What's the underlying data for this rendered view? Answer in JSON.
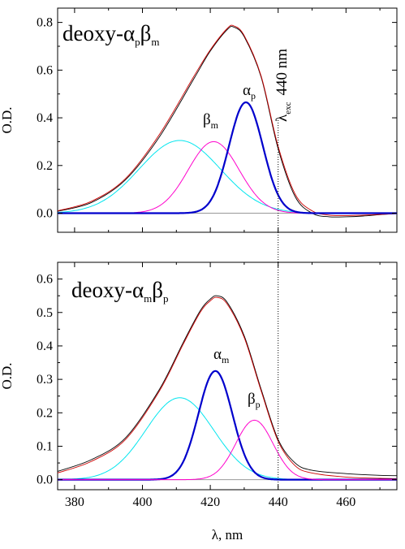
{
  "chart_data": [
    {
      "type": "line",
      "title": {
        "main": "deoxy-",
        "sym1": "α",
        "sub1": "p",
        "sym2": "β",
        "sub2": "m"
      },
      "ylabel": "O.D.",
      "xlabel": "",
      "xlim": [
        375,
        475
      ],
      "ylim": [
        -0.08,
        0.86
      ],
      "x_ticks": [],
      "y_ticks": [
        "0.0",
        "0.2",
        "0.4",
        "0.6",
        "0.8"
      ],
      "grid": false,
      "baseline_y": 0,
      "series": [
        {
          "name": "total-data",
          "color": "#000000",
          "width": 0.9,
          "points": [
            [
              375,
              0.008
            ],
            [
              385,
              0.045
            ],
            [
              395,
              0.14
            ],
            [
              405,
              0.32
            ],
            [
              415,
              0.56
            ],
            [
              420,
              0.68
            ],
            [
              425,
              0.77
            ],
            [
              427,
              0.78
            ],
            [
              430,
              0.74
            ],
            [
              435,
              0.57
            ],
            [
              440,
              0.27
            ],
            [
              445,
              0.07
            ],
            [
              450,
              0.0
            ],
            [
              455,
              -0.015
            ],
            [
              460,
              -0.015
            ],
            [
              465,
              -0.012
            ],
            [
              470,
              -0.006
            ],
            [
              475,
              -0.002
            ]
          ]
        },
        {
          "name": "total-fit",
          "color": "#cc0000",
          "width": 0.9,
          "points": [
            [
              375,
              0.01
            ],
            [
              385,
              0.05
            ],
            [
              395,
              0.145
            ],
            [
              405,
              0.33
            ],
            [
              415,
              0.57
            ],
            [
              420,
              0.685
            ],
            [
              425,
              0.775
            ],
            [
              427,
              0.785
            ],
            [
              430,
              0.745
            ],
            [
              435,
              0.575
            ],
            [
              440,
              0.28
            ],
            [
              445,
              0.08
            ],
            [
              450,
              0.01
            ],
            [
              455,
              -0.008
            ],
            [
              460,
              -0.01
            ],
            [
              465,
              -0.008
            ],
            [
              470,
              -0.005
            ],
            [
              475,
              -0.002
            ]
          ]
        },
        {
          "name": "broad",
          "color": "#00e5ee",
          "width": 1.0,
          "gaussian": {
            "amp": 0.305,
            "center": 411,
            "sigma": 12
          }
        },
        {
          "name": "beta_m",
          "color": "#ff00cc",
          "width": 1.0,
          "gaussian": {
            "amp": 0.3,
            "center": 421,
            "sigma": 7.5
          }
        },
        {
          "name": "alpha_p",
          "color": "#0000cc",
          "width": 2.2,
          "gaussian": {
            "amp": 0.465,
            "center": 430.5,
            "sigma": 5
          }
        }
      ],
      "annotations": [
        {
          "sym": "α",
          "sub": "p",
          "color": "#000000"
        },
        {
          "sym": "β",
          "sub": "m",
          "color": "#000000"
        },
        {
          "sym": "λ",
          "sub": "exc",
          "text": "440 nm"
        }
      ],
      "vline_x": 440
    },
    {
      "type": "line",
      "title": {
        "main": "deoxy-",
        "sym1": "α",
        "sub1": "m",
        "sym2": "β",
        "sub2": "p"
      },
      "ylabel": "O.D.",
      "xlabel": "λ, nm",
      "xlim": [
        375,
        475
      ],
      "ylim": [
        -0.03,
        0.65
      ],
      "x_ticks": [
        "380",
        "400",
        "420",
        "440",
        "460"
      ],
      "y_ticks": [
        "0.0",
        "0.1",
        "0.2",
        "0.3",
        "0.4",
        "0.5",
        "0.6"
      ],
      "grid": false,
      "baseline_y": 0,
      "series": [
        {
          "name": "total-data",
          "color": "#000000",
          "width": 0.9,
          "points": [
            [
              375,
              0.025
            ],
            [
              385,
              0.06
            ],
            [
              395,
              0.125
            ],
            [
              405,
              0.27
            ],
            [
              412,
              0.41
            ],
            [
              417,
              0.505
            ],
            [
              420,
              0.54
            ],
            [
              422,
              0.55
            ],
            [
              425,
              0.53
            ],
            [
              430,
              0.43
            ],
            [
              435,
              0.27
            ],
            [
              440,
              0.12
            ],
            [
              445,
              0.05
            ],
            [
              450,
              0.028
            ],
            [
              460,
              0.018
            ],
            [
              470,
              0.013
            ],
            [
              475,
              0.012
            ]
          ]
        },
        {
          "name": "total-fit",
          "color": "#cc0000",
          "width": 0.9,
          "points": [
            [
              375,
              0.02
            ],
            [
              385,
              0.055
            ],
            [
              395,
              0.12
            ],
            [
              405,
              0.265
            ],
            [
              412,
              0.405
            ],
            [
              417,
              0.5
            ],
            [
              420,
              0.535
            ],
            [
              422,
              0.545
            ],
            [
              425,
              0.525
            ],
            [
              430,
              0.425
            ],
            [
              435,
              0.265
            ],
            [
              440,
              0.115
            ],
            [
              445,
              0.042
            ],
            [
              450,
              0.02
            ],
            [
              460,
              0.008
            ],
            [
              470,
              0.004
            ],
            [
              475,
              0.003
            ]
          ]
        },
        {
          "name": "broad",
          "color": "#00e5ee",
          "width": 1.0,
          "gaussian": {
            "amp": 0.245,
            "center": 411,
            "sigma": 10
          }
        },
        {
          "name": "alpha_m",
          "color": "#0000cc",
          "width": 2.2,
          "gaussian": {
            "amp": 0.325,
            "center": 421.5,
            "sigma": 5
          }
        },
        {
          "name": "beta_p",
          "color": "#ff00cc",
          "width": 1.0,
          "gaussian": {
            "amp": 0.178,
            "center": 433,
            "sigma": 5.5
          }
        }
      ],
      "annotations": [
        {
          "sym": "α",
          "sub": "m",
          "color": "#000000"
        },
        {
          "sym": "β",
          "sub": "p",
          "color": "#000000"
        }
      ],
      "vline_x": 440
    }
  ]
}
